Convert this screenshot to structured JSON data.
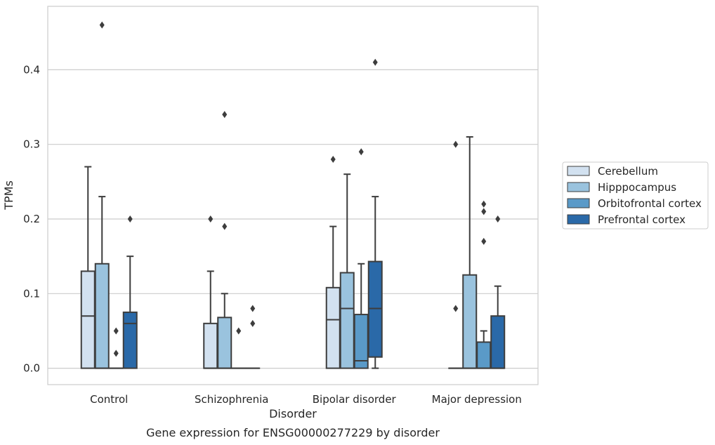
{
  "chart_data": {
    "type": "box",
    "title": "",
    "caption": "Gene expression for ENSG00000277229 by disorder",
    "xlabel": "Disorder",
    "ylabel": "TPMs",
    "ylim": [
      -0.022,
      0.485
    ],
    "yticks": [
      0.0,
      0.1,
      0.2,
      0.3,
      0.4
    ],
    "ytick_labels": [
      "0.0",
      "0.1",
      "0.2",
      "0.3",
      "0.4"
    ],
    "grid": "horizontal",
    "legend_position": "right",
    "categories": [
      "Control",
      "Schizophrenia",
      "Bipolar disorder",
      "Major depression"
    ],
    "series": [
      {
        "name": "Cerebellum",
        "color": "#d2e1f0",
        "boxes": [
          {
            "q1": 0.0,
            "median": 0.07,
            "q3": 0.13,
            "whisker_low": 0.0,
            "whisker_high": 0.27,
            "outliers": []
          },
          {
            "q1": 0.0,
            "median": 0.0,
            "q3": 0.06,
            "whisker_low": 0.0,
            "whisker_high": 0.13,
            "outliers": [
              0.2
            ]
          },
          {
            "q1": 0.0,
            "median": 0.065,
            "q3": 0.108,
            "whisker_low": 0.0,
            "whisker_high": 0.19,
            "outliers": [
              0.28
            ]
          },
          {
            "q1": 0.0,
            "median": 0.0,
            "q3": 0.0,
            "whisker_low": 0.0,
            "whisker_high": 0.0,
            "outliers": [
              0.08,
              0.3
            ]
          }
        ]
      },
      {
        "name": "Hipppocampus",
        "color": "#9ac3de",
        "boxes": [
          {
            "q1": 0.0,
            "median": 0.0,
            "q3": 0.14,
            "whisker_low": 0.0,
            "whisker_high": 0.23,
            "outliers": [
              0.46
            ]
          },
          {
            "q1": 0.0,
            "median": 0.0,
            "q3": 0.068,
            "whisker_low": 0.0,
            "whisker_high": 0.1,
            "outliers": [
              0.19,
              0.34
            ]
          },
          {
            "q1": 0.0,
            "median": 0.08,
            "q3": 0.128,
            "whisker_low": 0.0,
            "whisker_high": 0.26,
            "outliers": []
          },
          {
            "q1": 0.0,
            "median": 0.0,
            "q3": 0.125,
            "whisker_low": 0.0,
            "whisker_high": 0.31,
            "outliers": []
          }
        ]
      },
      {
        "name": "Orbitofrontal cortex",
        "color": "#5a9ac8",
        "boxes": [
          {
            "q1": 0.0,
            "median": 0.0,
            "q3": 0.0,
            "whisker_low": 0.0,
            "whisker_high": 0.0,
            "outliers": [
              0.02,
              0.05
            ]
          },
          {
            "q1": 0.0,
            "median": 0.0,
            "q3": 0.0,
            "whisker_low": 0.0,
            "whisker_high": 0.0,
            "outliers": [
              0.05
            ]
          },
          {
            "q1": 0.0,
            "median": 0.01,
            "q3": 0.072,
            "whisker_low": 0.0,
            "whisker_high": 0.14,
            "outliers": [
              0.29
            ]
          },
          {
            "q1": 0.0,
            "median": 0.0,
            "q3": 0.035,
            "whisker_low": 0.0,
            "whisker_high": 0.05,
            "outliers": [
              0.17,
              0.21,
              0.22
            ]
          }
        ]
      },
      {
        "name": "Prefrontal cortex",
        "color": "#2a69a8",
        "boxes": [
          {
            "q1": 0.0,
            "median": 0.06,
            "q3": 0.075,
            "whisker_low": 0.0,
            "whisker_high": 0.15,
            "outliers": [
              0.2
            ]
          },
          {
            "q1": 0.0,
            "median": 0.0,
            "q3": 0.0,
            "whisker_low": 0.0,
            "whisker_high": 0.0,
            "outliers": [
              0.06,
              0.08
            ]
          },
          {
            "q1": 0.015,
            "median": 0.08,
            "q3": 0.143,
            "whisker_low": 0.0,
            "whisker_high": 0.23,
            "outliers": [
              0.41
            ]
          },
          {
            "q1": 0.0,
            "median": 0.0,
            "q3": 0.07,
            "whisker_low": 0.0,
            "whisker_high": 0.11,
            "outliers": [
              0.2
            ]
          }
        ]
      }
    ]
  }
}
